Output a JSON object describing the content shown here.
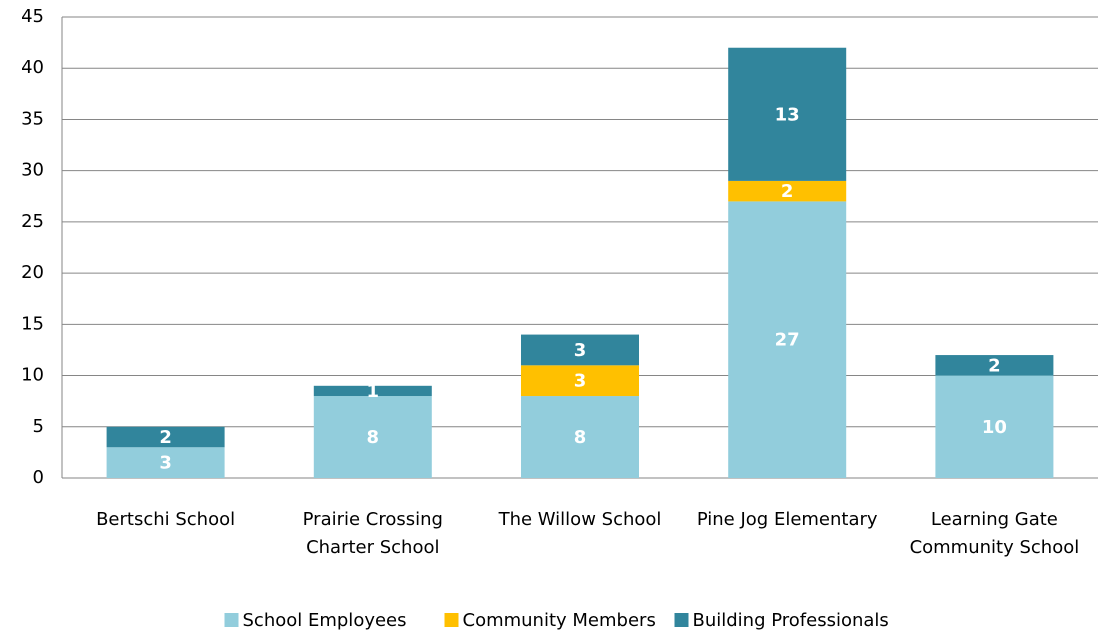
{
  "chart_data": {
    "type": "bar",
    "stacked": true,
    "categories": [
      "Bertschi School",
      "Prairie Crossing Charter School",
      "The Willow School",
      "Pine Jog Elementary",
      "Learning Gate Community School"
    ],
    "series": [
      {
        "name": "School Employees",
        "color": "#92cddc",
        "values": [
          3,
          8,
          8,
          27,
          10
        ]
      },
      {
        "name": "Community Members",
        "color": "#ffc000",
        "values": [
          0,
          0,
          3,
          2,
          0
        ]
      },
      {
        "name": "Building Professionals",
        "color": "#31859c",
        "values": [
          2,
          1,
          3,
          13,
          2
        ]
      }
    ],
    "ylim": [
      0,
      45
    ],
    "yticks": [
      0,
      5,
      10,
      15,
      20,
      25,
      30,
      35,
      40,
      45
    ],
    "grid": true,
    "legend": "bottom"
  }
}
